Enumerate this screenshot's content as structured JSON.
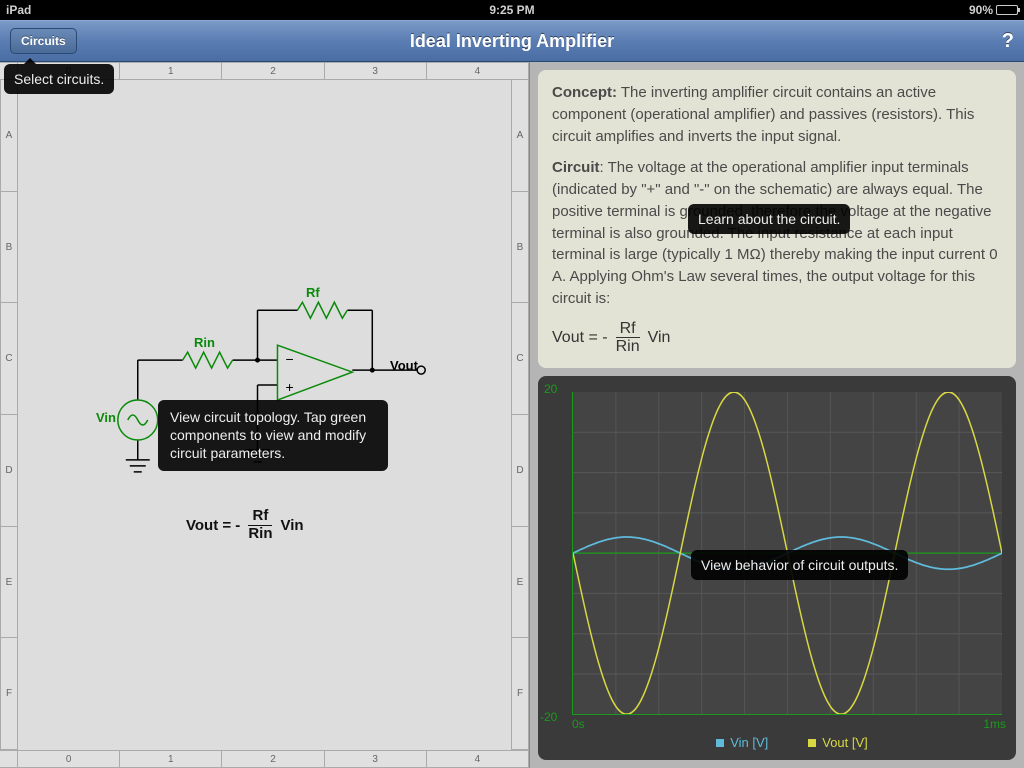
{
  "statusbar": {
    "device": "iPad",
    "time": "9:25 PM",
    "battery_pct": "90%"
  },
  "nav": {
    "circuits_btn": "Circuits",
    "title": "Ideal Inverting Amplifier",
    "help": "?"
  },
  "tooltips": {
    "select_circuits": "Select circuits.",
    "topology": "View circuit topology. Tap green components to view and modify circuit parameters.",
    "learn": "Learn about the circuit.",
    "behavior": "View behavior of circuit outputs."
  },
  "grid": {
    "cols": [
      "0",
      "1",
      "2",
      "3",
      "4"
    ],
    "rows": [
      "A",
      "B",
      "C",
      "D",
      "E",
      "F"
    ]
  },
  "schematic": {
    "rf": "Rf",
    "rin": "Rin",
    "vin": "Vin",
    "vout": "Vout",
    "component_color": "#0a8a0a",
    "wire_color": "#000000"
  },
  "formula": {
    "lhs": "Vout = -",
    "num": "Rf",
    "den": "Rin",
    "rhs": "Vin"
  },
  "concept": {
    "h1": "Concept:",
    "p1": " The inverting amplifier circuit contains an active component (operational amplifier) and passives (resistors). This circuit amplifies and inverts the input signal.",
    "h2": "Circuit",
    "p2": ": The voltage at the operational amplifier input terminals (indicated by \"+\" and \"-\" on the schematic) are always equal. The positive terminal is grounded, therefore the voltage at the negative terminal is also grounded. The input resistance at each input terminal is large (typically 1 MΩ) thereby making the input current 0 A. Applying Ohm's Law several times, the output voltage for this circuit is:",
    "text_color": "#4a4a4a",
    "bg_color": "#e3e3d5"
  },
  "graph": {
    "ymax": "20",
    "ymin": "-20",
    "xmin": "0s",
    "xmax": "1ms",
    "bg": "#444444",
    "grid_color": "#555555",
    "axis_color": "#1a9a1a",
    "vin": {
      "label": "Vin [V]",
      "color": "#5fbadb",
      "amplitude": 2,
      "cycles": 2
    },
    "vout": {
      "label": "Vout [V]",
      "color": "#d8d843",
      "amplitude": 20,
      "cycles": 2
    }
  }
}
